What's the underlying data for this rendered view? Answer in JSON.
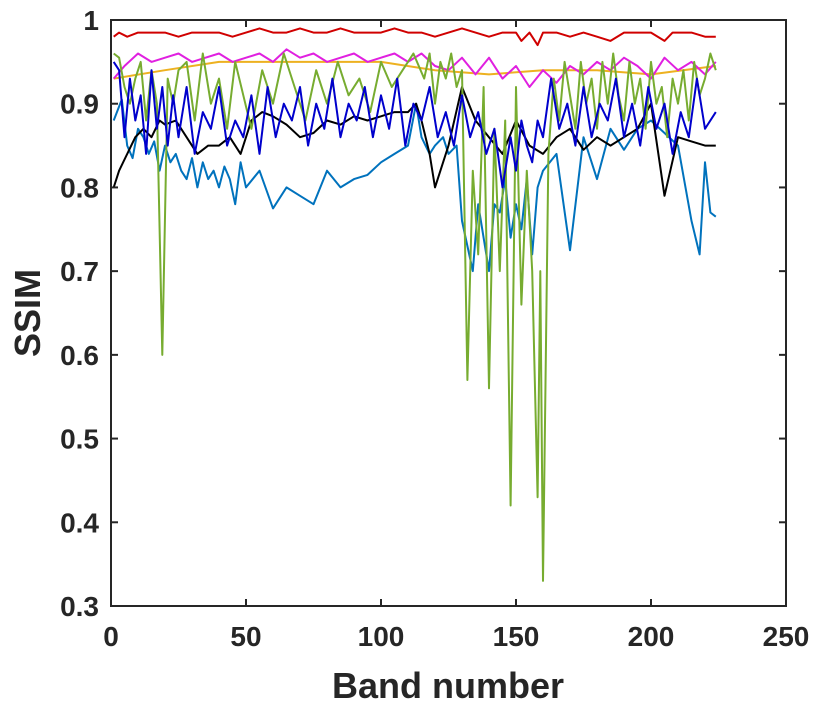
{
  "chart_data": {
    "type": "line",
    "title": "",
    "xlabel": "Band number",
    "ylabel": "SSIM",
    "xlim": [
      0,
      250
    ],
    "ylim": [
      0.3,
      1
    ],
    "xticks": [
      0,
      50,
      100,
      150,
      200,
      250
    ],
    "xtick_labels": [
      "0",
      "50",
      "100",
      "150",
      "200",
      "250"
    ],
    "yticks": [
      0.3,
      0.4,
      0.5,
      0.6,
      0.7,
      0.8,
      0.9,
      1
    ],
    "ytick_labels": [
      "0.3",
      "0.4",
      "0.5",
      "0.6",
      "0.7",
      "0.8",
      "0.9",
      "1"
    ],
    "grid": false,
    "series": [
      {
        "color": "#0072BD",
        "x": [
          1,
          4,
          6,
          8,
          10,
          12,
          14,
          16,
          18,
          20,
          22,
          24,
          26,
          28,
          30,
          32,
          34,
          36,
          38,
          40,
          42,
          44,
          46,
          48,
          50,
          55,
          60,
          65,
          70,
          75,
          80,
          85,
          90,
          95,
          100,
          105,
          110,
          113,
          115,
          118,
          120,
          123,
          125,
          128,
          130,
          132,
          134,
          136,
          138,
          140,
          142,
          144,
          146,
          148,
          150,
          152,
          154,
          156,
          158,
          160,
          165,
          170,
          175,
          180,
          185,
          190,
          195,
          200,
          205,
          210,
          215,
          218,
          220,
          222,
          224
        ],
        "y": [
          0.88,
          0.905,
          0.85,
          0.835,
          0.87,
          0.86,
          0.84,
          0.855,
          0.82,
          0.85,
          0.83,
          0.84,
          0.82,
          0.81,
          0.835,
          0.8,
          0.83,
          0.81,
          0.82,
          0.8,
          0.825,
          0.81,
          0.78,
          0.83,
          0.8,
          0.82,
          0.775,
          0.8,
          0.79,
          0.78,
          0.82,
          0.8,
          0.81,
          0.815,
          0.83,
          0.84,
          0.85,
          0.9,
          0.86,
          0.84,
          0.85,
          0.86,
          0.84,
          0.85,
          0.76,
          0.73,
          0.7,
          0.78,
          0.74,
          0.7,
          0.78,
          0.77,
          0.81,
          0.74,
          0.78,
          0.75,
          0.81,
          0.72,
          0.8,
          0.82,
          0.84,
          0.725,
          0.86,
          0.81,
          0.87,
          0.845,
          0.87,
          0.88,
          0.865,
          0.85,
          0.76,
          0.72,
          0.83,
          0.77,
          0.765
        ]
      },
      {
        "color": "#000000",
        "x": [
          1,
          3,
          6,
          9,
          12,
          15,
          18,
          20,
          24,
          28,
          32,
          36,
          40,
          44,
          48,
          52,
          56,
          60,
          65,
          70,
          75,
          80,
          85,
          90,
          95,
          100,
          105,
          110,
          113,
          115,
          118,
          120,
          125,
          130,
          135,
          140,
          145,
          150,
          155,
          160,
          165,
          170,
          175,
          180,
          185,
          190,
          195,
          200,
          205,
          210,
          215,
          220,
          224
        ],
        "y": [
          0.8,
          0.82,
          0.84,
          0.86,
          0.87,
          0.86,
          0.88,
          0.875,
          0.88,
          0.86,
          0.84,
          0.85,
          0.85,
          0.86,
          0.84,
          0.88,
          0.89,
          0.885,
          0.875,
          0.86,
          0.865,
          0.88,
          0.875,
          0.885,
          0.88,
          0.885,
          0.89,
          0.89,
          0.9,
          0.88,
          0.84,
          0.8,
          0.85,
          0.92,
          0.88,
          0.86,
          0.84,
          0.88,
          0.85,
          0.84,
          0.86,
          0.87,
          0.845,
          0.86,
          0.85,
          0.86,
          0.87,
          0.9,
          0.79,
          0.86,
          0.855,
          0.85,
          0.85
        ]
      },
      {
        "color": "#EDB120",
        "x": [
          1,
          20,
          40,
          60,
          80,
          100,
          120,
          140,
          160,
          180,
          200,
          224
        ],
        "y": [
          0.93,
          0.94,
          0.95,
          0.95,
          0.95,
          0.95,
          0.94,
          0.935,
          0.94,
          0.94,
          0.935,
          0.945
        ]
      },
      {
        "color": "#D00000",
        "x": [
          1,
          3,
          6,
          10,
          15,
          20,
          25,
          30,
          35,
          40,
          45,
          50,
          55,
          60,
          65,
          70,
          75,
          80,
          85,
          90,
          95,
          100,
          105,
          110,
          115,
          120,
          125,
          130,
          135,
          140,
          145,
          150,
          152,
          155,
          158,
          160,
          165,
          170,
          175,
          180,
          185,
          190,
          195,
          200,
          205,
          208,
          210,
          215,
          220,
          224
        ],
        "y": [
          0.98,
          0.985,
          0.98,
          0.985,
          0.985,
          0.985,
          0.98,
          0.985,
          0.985,
          0.985,
          0.98,
          0.985,
          0.99,
          0.985,
          0.985,
          0.99,
          0.985,
          0.985,
          0.99,
          0.985,
          0.985,
          0.985,
          0.99,
          0.985,
          0.985,
          0.98,
          0.985,
          0.99,
          0.985,
          0.98,
          0.985,
          0.985,
          0.975,
          0.985,
          0.97,
          0.985,
          0.985,
          0.98,
          0.985,
          0.98,
          0.975,
          0.985,
          0.985,
          0.985,
          0.975,
          0.985,
          0.985,
          0.985,
          0.98,
          0.98
        ]
      },
      {
        "color": "#E020E0",
        "x": [
          1,
          5,
          10,
          15,
          20,
          25,
          30,
          35,
          40,
          45,
          50,
          55,
          60,
          65,
          70,
          75,
          80,
          85,
          90,
          95,
          100,
          105,
          110,
          115,
          120,
          125,
          130,
          135,
          140,
          145,
          150,
          155,
          160,
          165,
          170,
          175,
          180,
          185,
          190,
          195,
          200,
          205,
          210,
          215,
          220,
          224
        ],
        "y": [
          0.93,
          0.945,
          0.96,
          0.95,
          0.955,
          0.96,
          0.95,
          0.955,
          0.96,
          0.95,
          0.955,
          0.96,
          0.95,
          0.965,
          0.955,
          0.96,
          0.95,
          0.955,
          0.96,
          0.95,
          0.955,
          0.96,
          0.95,
          0.96,
          0.945,
          0.94,
          0.955,
          0.935,
          0.955,
          0.93,
          0.945,
          0.92,
          0.94,
          0.925,
          0.945,
          0.935,
          0.95,
          0.94,
          0.955,
          0.945,
          0.93,
          0.955,
          0.94,
          0.95,
          0.935,
          0.95
        ]
      },
      {
        "color": "#77AC30",
        "x": [
          1,
          3,
          5,
          7,
          9,
          11,
          13,
          15,
          17,
          19,
          21,
          23,
          25,
          28,
          31,
          34,
          37,
          40,
          43,
          46,
          49,
          52,
          56,
          60,
          64,
          68,
          72,
          76,
          80,
          84,
          88,
          92,
          96,
          100,
          104,
          108,
          112,
          116,
          118,
          120,
          122,
          124,
          126,
          128,
          130,
          132,
          134,
          136,
          138,
          140,
          142,
          144,
          146,
          148,
          150,
          152,
          154,
          156,
          158,
          159,
          160,
          162,
          164,
          166,
          168,
          170,
          172,
          174,
          176,
          178,
          180,
          182,
          184,
          186,
          188,
          190,
          192,
          194,
          196,
          198,
          200,
          202,
          204,
          206,
          208,
          210,
          212,
          214,
          216,
          218,
          220,
          222,
          224
        ],
        "y": [
          0.96,
          0.955,
          0.92,
          0.9,
          0.93,
          0.95,
          0.88,
          0.94,
          0.9,
          0.6,
          0.93,
          0.9,
          0.94,
          0.95,
          0.88,
          0.96,
          0.9,
          0.93,
          0.87,
          0.95,
          0.91,
          0.87,
          0.94,
          0.9,
          0.96,
          0.92,
          0.88,
          0.94,
          0.9,
          0.95,
          0.91,
          0.93,
          0.89,
          0.95,
          0.92,
          0.94,
          0.96,
          0.93,
          0.96,
          0.9,
          0.95,
          0.93,
          0.96,
          0.92,
          0.94,
          0.57,
          0.82,
          0.72,
          0.92,
          0.56,
          0.87,
          0.7,
          0.88,
          0.42,
          0.92,
          0.66,
          0.82,
          0.7,
          0.43,
          0.7,
          0.33,
          0.84,
          0.93,
          0.88,
          0.95,
          0.91,
          0.87,
          0.95,
          0.9,
          0.93,
          0.87,
          0.95,
          0.9,
          0.96,
          0.91,
          0.88,
          0.95,
          0.9,
          0.93,
          0.87,
          0.95,
          0.9,
          0.92,
          0.86,
          0.93,
          0.9,
          0.94,
          0.88,
          0.95,
          0.91,
          0.93,
          0.96,
          0.94
        ]
      },
      {
        "color": "#0000CC",
        "x": [
          1,
          3,
          5,
          7,
          9,
          11,
          13,
          15,
          17,
          19,
          21,
          23,
          25,
          28,
          31,
          34,
          37,
          40,
          43,
          46,
          49,
          52,
          55,
          58,
          61,
          64,
          67,
          70,
          73,
          76,
          79,
          82,
          85,
          88,
          91,
          94,
          97,
          100,
          103,
          106,
          109,
          112,
          115,
          118,
          121,
          124,
          127,
          130,
          133,
          136,
          139,
          142,
          145,
          148,
          150,
          152,
          154,
          156,
          158,
          160,
          163,
          166,
          169,
          172,
          175,
          178,
          181,
          184,
          187,
          190,
          193,
          196,
          199,
          202,
          205,
          208,
          211,
          214,
          217,
          220,
          224
        ],
        "y": [
          0.95,
          0.94,
          0.86,
          0.93,
          0.88,
          0.91,
          0.84,
          0.94,
          0.87,
          0.92,
          0.85,
          0.91,
          0.86,
          0.92,
          0.84,
          0.89,
          0.87,
          0.92,
          0.85,
          0.88,
          0.86,
          0.91,
          0.84,
          0.92,
          0.86,
          0.9,
          0.88,
          0.92,
          0.85,
          0.9,
          0.87,
          0.93,
          0.86,
          0.9,
          0.88,
          0.92,
          0.86,
          0.91,
          0.87,
          0.93,
          0.85,
          0.9,
          0.88,
          0.92,
          0.86,
          0.89,
          0.85,
          0.91,
          0.86,
          0.89,
          0.84,
          0.87,
          0.8,
          0.86,
          0.82,
          0.88,
          0.85,
          0.83,
          0.88,
          0.86,
          0.93,
          0.87,
          0.9,
          0.85,
          0.92,
          0.86,
          0.9,
          0.88,
          0.93,
          0.86,
          0.9,
          0.85,
          0.92,
          0.87,
          0.9,
          0.84,
          0.89,
          0.86,
          0.93,
          0.87,
          0.89
        ]
      }
    ]
  }
}
